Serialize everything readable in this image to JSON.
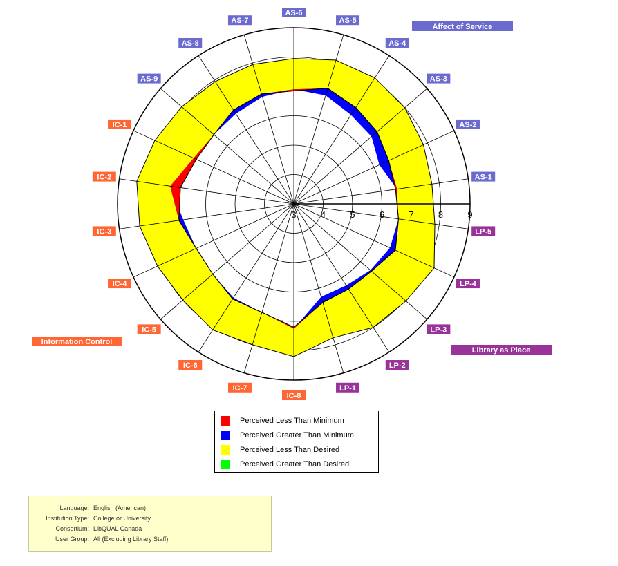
{
  "chart_data": {
    "type": "radar",
    "scale_ticks": [
      3,
      4,
      5,
      6,
      7,
      8,
      9
    ],
    "rlim": [
      3,
      9
    ],
    "axes": [
      "AS-6",
      "AS-5",
      "AS-4",
      "AS-3",
      "AS-2",
      "AS-1",
      "LP-5",
      "LP-4",
      "LP-3",
      "LP-2",
      "LP-1",
      "IC-8",
      "IC-7",
      "IC-6",
      "IC-5",
      "IC-4",
      "IC-3",
      "IC-2",
      "IC-1",
      "AS-9",
      "AS-8",
      "AS-7"
    ],
    "axis_groups": [
      "AS",
      "AS",
      "AS",
      "AS",
      "AS",
      "AS",
      "LP",
      "LP",
      "LP",
      "LP",
      "LP",
      "IC",
      "IC",
      "IC",
      "IC",
      "IC",
      "IC",
      "IC",
      "IC",
      "AS",
      "AS",
      "AS"
    ],
    "series": [
      {
        "name": "minimum",
        "values": [
          6.9,
          6.85,
          6.6,
          6.5,
          6.2,
          6.55,
          6.6,
          6.6,
          6.45,
          6.3,
          6.3,
          7.25,
          6.85,
          6.8,
          6.65,
          6.65,
          6.8,
          7.25,
          6.75,
          6.6,
          6.65,
          6.8
        ]
      },
      {
        "name": "perceived",
        "values": [
          6.85,
          7.1,
          6.9,
          6.75,
          6.55,
          6.5,
          6.6,
          6.8,
          6.5,
          6.45,
          6.5,
          7.2,
          6.85,
          6.85,
          6.65,
          6.65,
          6.95,
          6.9,
          6.65,
          6.6,
          6.8,
          6.9
        ]
      },
      {
        "name": "desired",
        "values": [
          7.95,
          8.1,
          8.1,
          8.0,
          7.85,
          7.75,
          7.85,
          8.25,
          8.05,
          8.0,
          7.75,
          8.2,
          8.0,
          8.1,
          8.0,
          8.1,
          8.3,
          8.4,
          8.2,
          8.05,
          7.95,
          7.95
        ]
      }
    ],
    "legend": [
      {
        "label": "Perceived Less Than Minimum",
        "color": "#ff0000"
      },
      {
        "label": "Perceived Greater Than Minimum",
        "color": "#0000ff"
      },
      {
        "label": "Perceived Less Than Desired",
        "color": "#ffff00"
      },
      {
        "label": "Perceived Greater Than Desired",
        "color": "#00ff00"
      }
    ],
    "dimensions": [
      {
        "label": "Affect of Service",
        "color": "#6b6bcf"
      },
      {
        "label": "Library as Place",
        "color": "#993399"
      },
      {
        "label": "Information Control",
        "color": "#ff6633"
      }
    ],
    "group_colors": {
      "AS": "#6b6bcf",
      "LP": "#993399",
      "IC": "#ff6633"
    }
  },
  "info": [
    {
      "key": "Language:",
      "value": "English (American)"
    },
    {
      "key": "Institution Type:",
      "value": "College or University"
    },
    {
      "key": "Consortium:",
      "value": "LibQUAL Canada"
    },
    {
      "key": "User Group:",
      "value": "All (Excluding Library Staff)"
    }
  ]
}
